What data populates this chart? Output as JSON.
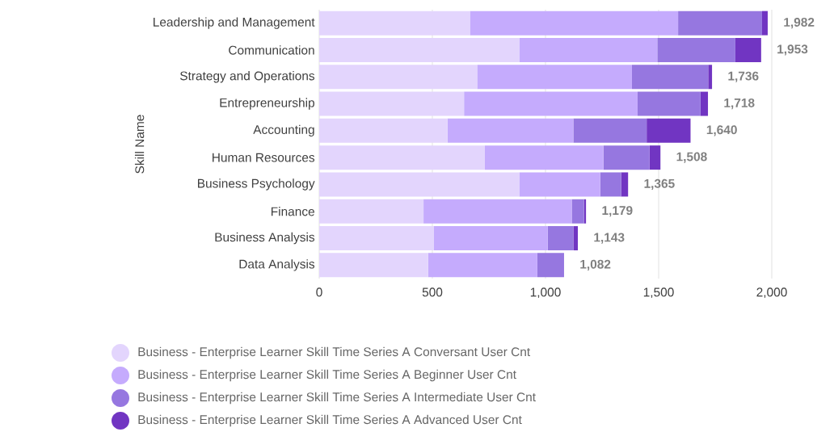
{
  "chart_data": {
    "type": "bar",
    "orientation": "horizontal",
    "stacked": true,
    "ylabel": "Skill Name",
    "categories": [
      "Leadership and Management",
      "Communication",
      "Strategy and Operations",
      "Entrepreneurship",
      "Accounting",
      "Human Resources",
      "Business Psychology",
      "Finance",
      "Business Analysis",
      "Data Analysis"
    ],
    "series": [
      {
        "name": "Business - Enterprise Learner Skill Time Series A Conversant User Cnt",
        "color": "#e3d5fd",
        "values": [
          666,
          884,
          698,
          640,
          567,
          732,
          884,
          461,
          507,
          481
        ]
      },
      {
        "name": "Business - Enterprise Learner Skill Time Series A Beginner User Cnt",
        "color": "#c5abfd",
        "values": [
          920,
          610,
          684,
          767,
          556,
          524,
          358,
          655,
          503,
          483
        ]
      },
      {
        "name": "Business - Enterprise Learner Skill Time Series A Intermediate User Cnt",
        "color": "#9677e0",
        "values": [
          371,
          345,
          337,
          278,
          324,
          204,
          92,
          54,
          113,
          118
        ]
      },
      {
        "name": "Business - Enterprise Learner Skill Time Series A Advanced User Cnt",
        "color": "#7135c2",
        "values": [
          25,
          114,
          17,
          33,
          194,
          48,
          31,
          9,
          20,
          0
        ]
      }
    ],
    "totals": [
      "1,982",
      "1,953",
      "1,736",
      "1,718",
      "1,640",
      "1,508",
      "1,365",
      "1,179",
      "1,143",
      "1,082"
    ],
    "xlim": [
      0,
      2000
    ],
    "xticks": [
      0,
      500,
      {
        "value": 1000,
        "label": "1,000"
      },
      {
        "value": 1500,
        "label": "1,500"
      },
      {
        "value": 2000,
        "label": "2,000"
      }
    ],
    "grid": "x",
    "legend": "bottom"
  }
}
